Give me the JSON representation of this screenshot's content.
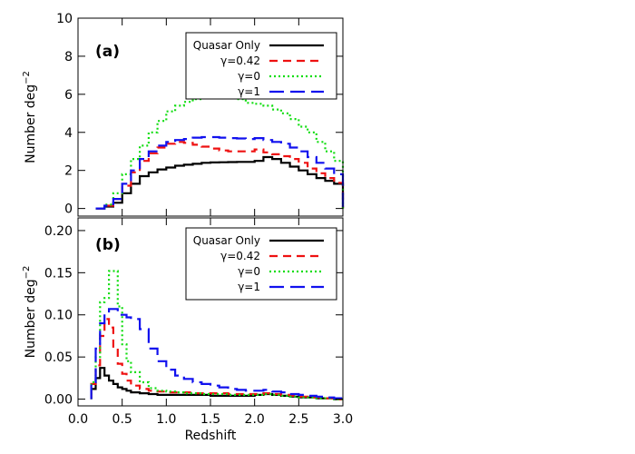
{
  "chart_data": [
    {
      "type": "line",
      "panel_label": "(a)",
      "ylabel": "Number deg",
      "ylabel_exp": "−2",
      "xlim": [
        0.0,
        3.0
      ],
      "ylim": [
        -0.4,
        10.0
      ],
      "yticks": [
        0,
        2,
        4,
        6,
        8,
        10
      ],
      "ytick_labels": [
        "0",
        "2",
        "4",
        "6",
        "8",
        "10"
      ],
      "step": "histogram",
      "legend_position": "top-right",
      "x_edges": [
        0.2,
        0.3,
        0.4,
        0.5,
        0.6,
        0.7,
        0.8,
        0.9,
        1.0,
        1.1,
        1.2,
        1.3,
        1.4,
        1.5,
        1.6,
        1.7,
        1.8,
        1.9,
        2.0,
        2.1,
        2.2,
        2.3,
        2.4,
        2.5,
        2.6,
        2.7,
        2.8,
        2.9,
        3.0
      ],
      "series": [
        {
          "name": "Quasar Only",
          "color": "#000000",
          "dash": "solid",
          "values": [
            0.0,
            0.1,
            0.3,
            0.8,
            1.3,
            1.7,
            1.9,
            2.05,
            2.15,
            2.25,
            2.3,
            2.35,
            2.4,
            2.42,
            2.43,
            2.44,
            2.45,
            2.45,
            2.5,
            2.7,
            2.6,
            2.4,
            2.2,
            2.0,
            1.8,
            1.6,
            1.45,
            1.3
          ]
        },
        {
          "name": "γ=0.42",
          "color": "#ee1111",
          "dash": "dashed",
          "values": [
            0.0,
            0.15,
            0.5,
            1.2,
            1.9,
            2.5,
            2.9,
            3.2,
            3.4,
            3.5,
            3.45,
            3.35,
            3.25,
            3.15,
            3.05,
            3.0,
            3.0,
            3.0,
            3.1,
            2.95,
            2.85,
            2.75,
            2.6,
            2.4,
            2.1,
            1.85,
            1.6,
            1.35
          ]
        },
        {
          "name": "γ=0",
          "color": "#11dd11",
          "dash": "dotted",
          "values": [
            0.0,
            0.2,
            0.8,
            1.8,
            2.6,
            3.3,
            4.0,
            4.6,
            5.1,
            5.4,
            5.6,
            5.75,
            5.85,
            5.95,
            5.95,
            5.9,
            5.75,
            5.55,
            5.5,
            5.4,
            5.2,
            5.0,
            4.7,
            4.3,
            4.0,
            3.5,
            3.0,
            2.5
          ]
        },
        {
          "name": "γ=1",
          "color": "#1111ee",
          "dash": "longdash",
          "values": [
            0.0,
            0.15,
            0.5,
            1.3,
            2.0,
            2.6,
            3.0,
            3.3,
            3.5,
            3.6,
            3.65,
            3.72,
            3.75,
            3.75,
            3.72,
            3.7,
            3.68,
            3.65,
            3.7,
            3.6,
            3.5,
            3.4,
            3.2,
            3.0,
            2.7,
            2.4,
            2.1,
            1.8
          ]
        }
      ]
    },
    {
      "type": "line",
      "panel_label": "(b)",
      "xlabel": "Redshift",
      "ylabel": "Number deg",
      "ylabel_exp": "−2",
      "xlim": [
        0.0,
        3.0
      ],
      "ylim": [
        -0.008,
        0.215
      ],
      "xticks": [
        0.0,
        0.5,
        1.0,
        1.5,
        2.0,
        2.5,
        3.0
      ],
      "xtick_labels": [
        "0.0",
        "0.5",
        "1.0",
        "1.5",
        "2.0",
        "2.5",
        "3.0"
      ],
      "yticks": [
        0.0,
        0.05,
        0.1,
        0.15,
        0.2
      ],
      "ytick_labels": [
        "0.00",
        "0.05",
        "0.10",
        "0.15",
        "0.20"
      ],
      "step": "histogram",
      "legend_position": "top-right",
      "x_edges": [
        0.15,
        0.2,
        0.25,
        0.3,
        0.35,
        0.4,
        0.45,
        0.5,
        0.55,
        0.6,
        0.7,
        0.8,
        0.9,
        1.0,
        1.1,
        1.2,
        1.3,
        1.4,
        1.5,
        1.6,
        1.7,
        1.8,
        1.9,
        2.0,
        2.1,
        2.2,
        2.3,
        2.4,
        2.5,
        2.6,
        2.7,
        2.8,
        2.9,
        3.0
      ],
      "series": [
        {
          "name": "Quasar Only",
          "color": "#000000",
          "dash": "solid",
          "values": [
            0.012,
            0.025,
            0.037,
            0.028,
            0.022,
            0.018,
            0.014,
            0.012,
            0.01,
            0.008,
            0.007,
            0.006,
            0.005,
            0.005,
            0.005,
            0.005,
            0.005,
            0.005,
            0.004,
            0.004,
            0.004,
            0.004,
            0.004,
            0.005,
            0.006,
            0.005,
            0.004,
            0.003,
            0.002,
            0.002,
            0.001,
            0.001,
            0.0
          ]
        },
        {
          "name": "γ=0.42",
          "color": "#ee1111",
          "dash": "dashed",
          "values": [
            0.018,
            0.04,
            0.075,
            0.095,
            0.085,
            0.06,
            0.042,
            0.03,
            0.022,
            0.016,
            0.012,
            0.01,
            0.009,
            0.008,
            0.008,
            0.008,
            0.007,
            0.007,
            0.007,
            0.007,
            0.006,
            0.006,
            0.006,
            0.006,
            0.007,
            0.006,
            0.005,
            0.004,
            0.003,
            0.002,
            0.002,
            0.001,
            0.0
          ]
        },
        {
          "name": "γ=0",
          "color": "#11dd11",
          "dash": "dotted",
          "values": [
            0.02,
            0.05,
            0.115,
            0.12,
            0.152,
            0.152,
            0.11,
            0.065,
            0.045,
            0.032,
            0.02,
            0.013,
            0.01,
            0.009,
            0.008,
            0.007,
            0.007,
            0.006,
            0.006,
            0.006,
            0.005,
            0.005,
            0.005,
            0.005,
            0.006,
            0.005,
            0.004,
            0.003,
            0.002,
            0.002,
            0.001,
            0.001,
            0.0
          ]
        },
        {
          "name": "γ=1",
          "color": "#1111ee",
          "dash": "longdash",
          "values": [
            0.02,
            0.06,
            0.09,
            0.102,
            0.107,
            0.107,
            0.1,
            0.1,
            0.097,
            0.095,
            0.083,
            0.06,
            0.045,
            0.035,
            0.028,
            0.024,
            0.02,
            0.018,
            0.016,
            0.014,
            0.012,
            0.011,
            0.01,
            0.01,
            0.011,
            0.009,
            0.008,
            0.006,
            0.005,
            0.004,
            0.003,
            0.002,
            0.001
          ]
        }
      ]
    }
  ]
}
